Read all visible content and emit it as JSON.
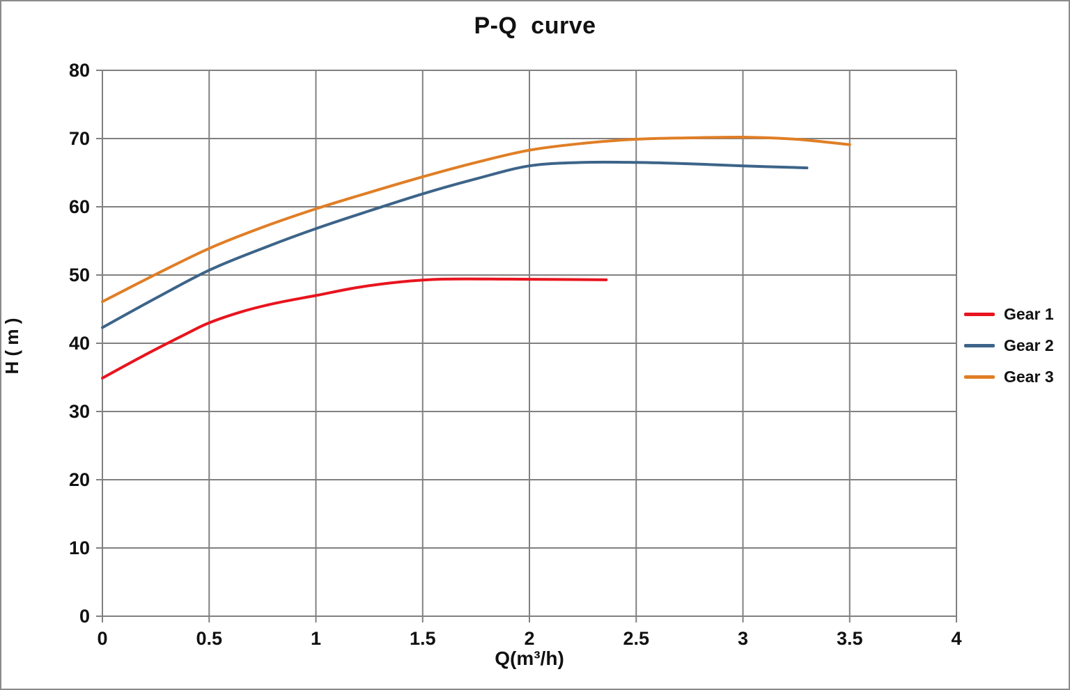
{
  "chart_data": {
    "type": "line",
    "title": "P-Q  curve",
    "xlabel": "Q(m³/h)",
    "ylabel": "H ( m )",
    "xlim": [
      0,
      4
    ],
    "ylim": [
      0,
      80
    ],
    "grid": true,
    "legend_position": "right-outside",
    "grid_color": "#808080",
    "text_color": "#111111",
    "xticks": [
      {
        "value": 0,
        "label": "0"
      },
      {
        "value": 0.5,
        "label": "0.5"
      },
      {
        "value": 1,
        "label": "1"
      },
      {
        "value": 1.5,
        "label": "1.5"
      },
      {
        "value": 2,
        "label": "2"
      },
      {
        "value": 2.5,
        "label": "2.5"
      },
      {
        "value": 3,
        "label": "3"
      },
      {
        "value": 3.5,
        "label": "3.5"
      },
      {
        "value": 4,
        "label": "4"
      }
    ],
    "yticks": [
      {
        "value": 0,
        "label": "0"
      },
      {
        "value": 10,
        "label": "10"
      },
      {
        "value": 20,
        "label": "20"
      },
      {
        "value": 30,
        "label": "30"
      },
      {
        "value": 40,
        "label": "40"
      },
      {
        "value": 50,
        "label": "50"
      },
      {
        "value": 60,
        "label": "60"
      },
      {
        "value": 70,
        "label": "70"
      },
      {
        "value": 80,
        "label": "80"
      }
    ],
    "series": [
      {
        "name": "Gear 1",
        "color": "#e8141e",
        "points": [
          [
            0,
            34.9
          ],
          [
            0.2,
            38.3
          ],
          [
            0.4,
            41.5
          ],
          [
            0.5,
            43.0
          ],
          [
            0.65,
            44.6
          ],
          [
            0.8,
            45.8
          ],
          [
            1.0,
            47.0
          ],
          [
            1.2,
            48.2
          ],
          [
            1.4,
            49.0
          ],
          [
            1.6,
            49.4
          ],
          [
            1.9,
            49.4
          ],
          [
            2.15,
            49.35
          ],
          [
            2.36,
            49.3
          ]
        ]
      },
      {
        "name": "Gear 2",
        "color": "#3d6489",
        "points": [
          [
            0,
            42.3
          ],
          [
            0.25,
            46.6
          ],
          [
            0.5,
            50.7
          ],
          [
            0.75,
            53.9
          ],
          [
            1.0,
            56.8
          ],
          [
            1.25,
            59.4
          ],
          [
            1.5,
            61.9
          ],
          [
            1.75,
            64.1
          ],
          [
            2.0,
            66.0
          ],
          [
            2.25,
            66.5
          ],
          [
            2.5,
            66.5
          ],
          [
            2.75,
            66.3
          ],
          [
            3.0,
            66.0
          ],
          [
            3.3,
            65.7
          ]
        ]
      },
      {
        "name": "Gear 3",
        "color": "#e07e26",
        "points": [
          [
            0,
            46.1
          ],
          [
            0.25,
            50.1
          ],
          [
            0.5,
            53.9
          ],
          [
            0.75,
            57.0
          ],
          [
            1.0,
            59.7
          ],
          [
            1.25,
            62.1
          ],
          [
            1.5,
            64.4
          ],
          [
            1.75,
            66.5
          ],
          [
            2.0,
            68.3
          ],
          [
            2.25,
            69.3
          ],
          [
            2.5,
            69.9
          ],
          [
            2.75,
            70.1
          ],
          [
            3.0,
            70.2
          ],
          [
            3.25,
            69.9
          ],
          [
            3.5,
            69.1
          ]
        ]
      }
    ]
  }
}
